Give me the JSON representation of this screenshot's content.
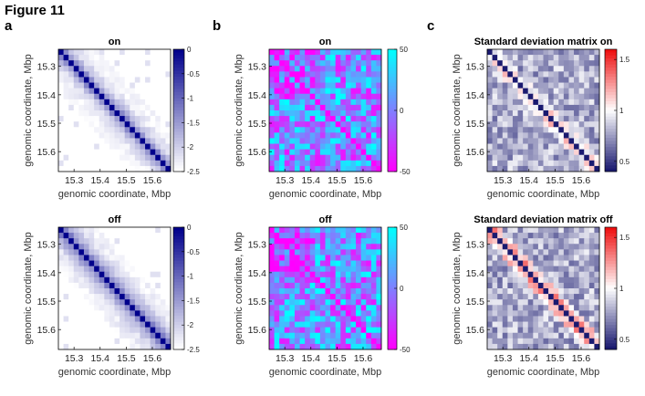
{
  "figure": {
    "title": "Figure 11",
    "panel_letters": [
      "a",
      "b",
      "c"
    ]
  },
  "colors": {
    "blue_low": "#ffffff",
    "blue_high": "#00008b",
    "cool_low": "#ff00ff",
    "cool_high": "#00ffff",
    "bwr_low": "#1a1a70",
    "bwr_mid": "#ffffff",
    "bwr_high": "#ee1111",
    "frame": "#000000"
  },
  "chart_data": [
    {
      "id": "a-on",
      "type": "heatmap",
      "title": "on",
      "xlabel": "genomic coordinate, Mbp",
      "ylabel": "genomic coordinate, Mbp",
      "xticks": [
        "15.3",
        "15.4",
        "15.5",
        "15.6"
      ],
      "yticks": [
        "15.3",
        "15.4",
        "15.5",
        "15.6"
      ],
      "tick_values": [
        15.3,
        15.4,
        15.5,
        15.6
      ],
      "range": [
        15.24,
        15.67
      ],
      "bins": 22,
      "colorbar": {
        "ticks": [
          "0",
          "-0.5",
          "-1",
          "-1.5",
          "-2",
          "-2.5"
        ],
        "tick_values": [
          0,
          -0.5,
          -1,
          -1.5,
          -2,
          -2.5
        ],
        "range": [
          -2.5,
          0
        ]
      },
      "colormap": "blue",
      "diagonal_decay": 0.55
    },
    {
      "id": "a-off",
      "type": "heatmap",
      "title": "off",
      "xlabel": "genomic coordinate, Mbp",
      "ylabel": "genomic coordinate, Mbp",
      "xticks": [
        "15.3",
        "15.4",
        "15.5",
        "15.6"
      ],
      "yticks": [
        "15.3",
        "15.4",
        "15.5",
        "15.6"
      ],
      "tick_values": [
        15.3,
        15.4,
        15.5,
        15.6
      ],
      "range": [
        15.24,
        15.67
      ],
      "bins": 22,
      "colorbar": {
        "ticks": [
          "0",
          "-0.5",
          "-1",
          "-1.5",
          "-2",
          "-2.5"
        ],
        "tick_values": [
          0,
          -0.5,
          -1,
          -1.5,
          -2,
          -2.5
        ],
        "range": [
          -2.5,
          0
        ]
      },
      "colormap": "blue",
      "diagonal_decay": 0.45
    },
    {
      "id": "b-on",
      "type": "heatmap",
      "title": "on",
      "xlabel": "genomic coordinate, Mbp",
      "ylabel": "genomic coordinate, Mbp",
      "xticks": [
        "15.3",
        "15.4",
        "15.5",
        "15.6"
      ],
      "yticks": [
        "15.3",
        "15.4",
        "15.5",
        "15.6"
      ],
      "tick_values": [
        15.3,
        15.4,
        15.5,
        15.6
      ],
      "range": [
        15.24,
        15.67
      ],
      "bins": 22,
      "colorbar": {
        "ticks": [
          "50",
          "0",
          "-50"
        ],
        "tick_values": [
          50,
          0,
          -50
        ],
        "range": [
          -50,
          50
        ]
      },
      "colormap": "cool"
    },
    {
      "id": "b-off",
      "type": "heatmap",
      "title": "off",
      "xlabel": "genomic coordinate, Mbp",
      "ylabel": "genomic coordinate, Mbp",
      "xticks": [
        "15.3",
        "15.4",
        "15.5",
        "15.6"
      ],
      "yticks": [
        "15.3",
        "15.4",
        "15.5",
        "15.6"
      ],
      "tick_values": [
        15.3,
        15.4,
        15.5,
        15.6
      ],
      "range": [
        15.24,
        15.67
      ],
      "bins": 22,
      "colorbar": {
        "ticks": [
          "50",
          "0",
          "-50"
        ],
        "tick_values": [
          50,
          0,
          -50
        ],
        "range": [
          -50,
          50
        ]
      },
      "colormap": "cool"
    },
    {
      "id": "c-on",
      "type": "heatmap",
      "title": "Standard deviation matrix on",
      "xlabel": "genomic coordinate, Mbp",
      "ylabel": "genomic coordinate, Mbp",
      "xticks": [
        "15.3",
        "15.4",
        "15.5",
        "15.6"
      ],
      "yticks": [
        "15.3",
        "15.4",
        "15.5",
        "15.6"
      ],
      "tick_values": [
        15.3,
        15.4,
        15.5,
        15.6
      ],
      "range": [
        15.24,
        15.67
      ],
      "bins": 22,
      "colorbar": {
        "ticks": [
          "1.5",
          "1",
          "0.5"
        ],
        "tick_values": [
          1.5,
          1,
          0.5
        ],
        "range": [
          0.4,
          1.6
        ]
      },
      "colormap": "bwr"
    },
    {
      "id": "c-off",
      "type": "heatmap",
      "title": "Standard deviation matrix off",
      "xlabel": "genomic coordinate, Mbp",
      "ylabel": "genomic coordinate, Mbp",
      "xticks": [
        "15.3",
        "15.4",
        "15.5",
        "15.6"
      ],
      "yticks": [
        "15.3",
        "15.4",
        "15.5",
        "15.6"
      ],
      "tick_values": [
        15.3,
        15.4,
        15.5,
        15.6
      ],
      "range": [
        15.24,
        15.67
      ],
      "bins": 22,
      "colorbar": {
        "ticks": [
          "1.5",
          "1",
          "0.5"
        ],
        "tick_values": [
          1.5,
          1,
          0.5
        ],
        "range": [
          0.4,
          1.6
        ]
      },
      "colormap": "bwr"
    }
  ]
}
